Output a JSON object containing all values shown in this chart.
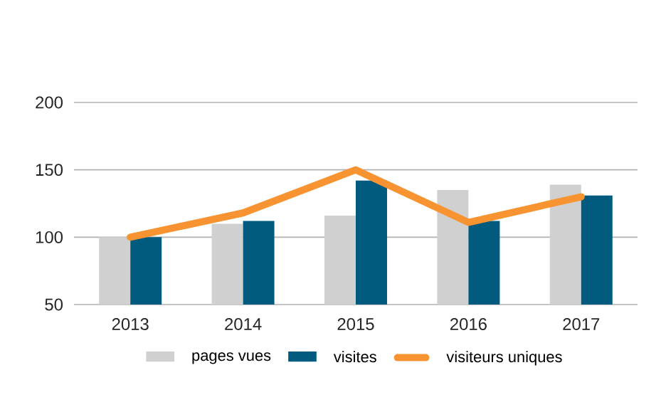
{
  "chart_data": {
    "type": "bar",
    "categories": [
      "2013",
      "2014",
      "2015",
      "2016",
      "2017"
    ],
    "series": [
      {
        "name": "pages vues",
        "color": "#d0d0d0",
        "values": [
          100,
          110,
          116,
          135,
          139
        ]
      },
      {
        "name": "visites",
        "color": "#005b7f",
        "values": [
          100,
          112,
          142,
          112,
          131
        ]
      },
      {
        "name": "visiteurs uniques",
        "type": "line",
        "color": "#f79431",
        "values": [
          100,
          118,
          150,
          111,
          130
        ]
      }
    ],
    "ylim": [
      50,
      200
    ],
    "yticks": [
      50,
      100,
      150,
      200
    ],
    "grid": "y",
    "legend": "bottom",
    "marker": "none",
    "line_style": "solid"
  }
}
